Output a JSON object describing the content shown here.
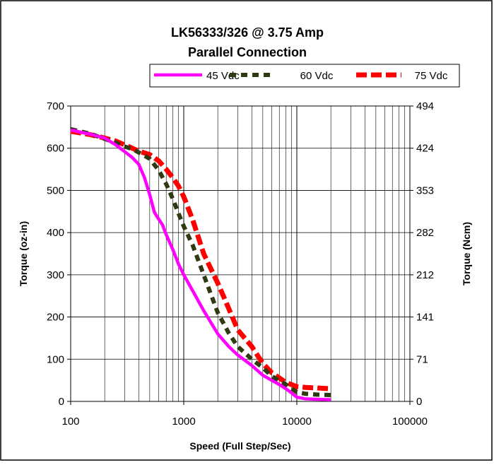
{
  "chart_data": {
    "type": "line",
    "title": "LK56333/326 @  3.75 Amp",
    "subtitle": "Parallel Connection",
    "xlabel": "Speed (Full Step/Sec)",
    "ylabel": "Torque (oz-in)",
    "y2label": "Torque (Ncm)",
    "x_scale": "log",
    "xlim": [
      100,
      100000
    ],
    "ylim": [
      0,
      700
    ],
    "grid": true,
    "legend_position": "top",
    "x_ticks": [
      "100",
      "1000",
      "10000",
      "100000"
    ],
    "y_ticks": [
      "0",
      "100",
      "200",
      "300",
      "400",
      "500",
      "600",
      "700"
    ],
    "y2_ticks": [
      "0",
      "71",
      "141",
      "212",
      "282",
      "353",
      "424",
      "494"
    ],
    "series": [
      {
        "name": "45 Vdc",
        "color": "#ff00ff",
        "style": "solid",
        "x": [
          100,
          150,
          200,
          250,
          300,
          350,
          400,
          450,
          500,
          550,
          600,
          650,
          700,
          800,
          900,
          1000,
          1200,
          1500,
          2000,
          2500,
          3000,
          4000,
          5000,
          6000,
          7000,
          8000,
          9000,
          10000,
          12000,
          15000,
          20000
        ],
        "y": [
          643,
          633,
          624,
          608,
          592,
          578,
          562,
          530,
          490,
          448,
          432,
          418,
          395,
          360,
          325,
          300,
          262,
          215,
          160,
          130,
          110,
          85,
          62,
          50,
          40,
          30,
          20,
          10,
          6,
          5,
          4
        ]
      },
      {
        "name": "60 Vdc",
        "color": "#2e3a10",
        "style": "dashed",
        "x": [
          100,
          150,
          200,
          250,
          300,
          350,
          400,
          500,
          600,
          700,
          800,
          900,
          1000,
          1200,
          1500,
          2000,
          2500,
          3000,
          4000,
          5000,
          6000,
          8000,
          10000,
          12000,
          15000,
          20000
        ],
        "y": [
          645,
          634,
          622,
          613,
          604,
          598,
          590,
          575,
          548,
          515,
          480,
          445,
          415,
          370,
          300,
          210,
          162,
          130,
          100,
          80,
          60,
          40,
          22,
          18,
          16,
          15
        ]
      },
      {
        "name": "75 Vdc",
        "color": "#ff0000",
        "style": "dashed",
        "x": [
          100,
          150,
          200,
          250,
          300,
          350,
          400,
          500,
          600,
          700,
          800,
          900,
          1000,
          1200,
          1500,
          2000,
          2500,
          3000,
          4000,
          5000,
          6000,
          8000,
          10000,
          12000,
          15000,
          20000
        ],
        "y": [
          640,
          632,
          624,
          617,
          608,
          600,
          593,
          585,
          570,
          550,
          530,
          510,
          485,
          430,
          350,
          280,
          220,
          170,
          130,
          90,
          68,
          45,
          35,
          33,
          32,
          30
        ]
      }
    ]
  }
}
